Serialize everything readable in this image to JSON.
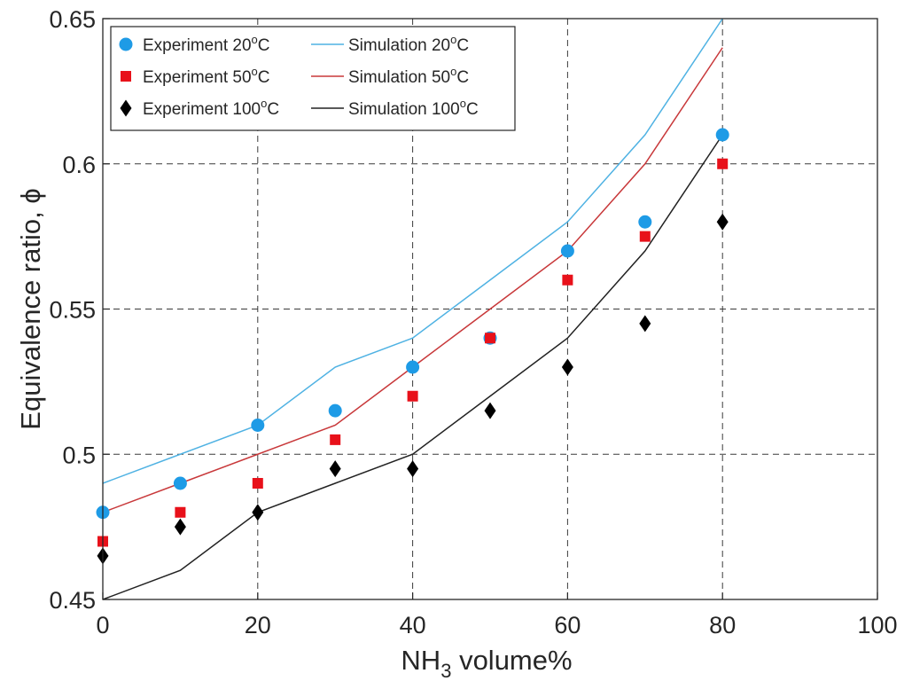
{
  "chart_data": {
    "type": "scatter",
    "xlabel": "NH3 volume%",
    "xlabel_main": "NH",
    "xlabel_sub": "3",
    "xlabel_rest": " volume%",
    "ylabel": "Equivalence ratio, ϕ",
    "xlim": [
      0,
      100
    ],
    "ylim": [
      0.45,
      0.65
    ],
    "xticks": [
      0,
      20,
      40,
      60,
      80,
      100
    ],
    "xtick_labels": [
      "0",
      "20",
      "40",
      "60",
      "80",
      "100"
    ],
    "yticks": [
      0.45,
      0.5,
      0.55,
      0.6,
      0.65
    ],
    "ytick_labels": [
      "0.45",
      "0.5",
      "0.55",
      "0.6",
      "0.65"
    ],
    "grid": true,
    "legend_position": "top-left",
    "series": [
      {
        "name": "Experiment 20oC",
        "legend_main": "Experiment 20",
        "legend_sup": "o",
        "legend_end": "C",
        "kind": "marker-circle",
        "color": "#1e9be6",
        "x": [
          0,
          10,
          20,
          30,
          40,
          50,
          60,
          70,
          80
        ],
        "y": [
          0.48,
          0.49,
          0.51,
          0.515,
          0.53,
          0.54,
          0.57,
          0.58,
          0.61
        ]
      },
      {
        "name": "Experiment 50oC",
        "legend_main": "Experiment 50",
        "legend_sup": "o",
        "legend_end": "C",
        "kind": "marker-square",
        "color": "#e8111a",
        "x": [
          0,
          10,
          20,
          30,
          40,
          50,
          60,
          70,
          80
        ],
        "y": [
          0.47,
          0.48,
          0.49,
          0.505,
          0.52,
          0.54,
          0.56,
          0.575,
          0.6
        ]
      },
      {
        "name": "Experiment 100oC",
        "legend_main": "Experiment 100",
        "legend_sup": "o",
        "legend_end": "C",
        "kind": "marker-diamond",
        "color": "#000000",
        "x": [
          0,
          10,
          20,
          30,
          40,
          50,
          60,
          70,
          80
        ],
        "y": [
          0.465,
          0.475,
          0.48,
          0.495,
          0.495,
          0.515,
          0.53,
          0.545,
          0.58
        ]
      },
      {
        "name": "Simulation 20oC",
        "legend_main": "Simulation 20",
        "legend_sup": "o",
        "legend_end": "C",
        "kind": "line",
        "color": "#4fb2e3",
        "x": [
          0,
          10,
          20,
          30,
          40,
          50,
          60,
          70,
          80
        ],
        "y": [
          0.49,
          0.5,
          0.51,
          0.53,
          0.54,
          0.56,
          0.58,
          0.61,
          0.65
        ]
      },
      {
        "name": "Simulation 50oC",
        "legend_main": "Simulation 50",
        "legend_sup": "o",
        "legend_end": "C",
        "kind": "line",
        "color": "#c8383a",
        "x": [
          0,
          10,
          20,
          30,
          40,
          50,
          60,
          70,
          80
        ],
        "y": [
          0.48,
          0.49,
          0.5,
          0.51,
          0.53,
          0.55,
          0.57,
          0.6,
          0.64
        ]
      },
      {
        "name": "Simulation 100oC",
        "legend_main": "Simulation 100",
        "legend_sup": "o",
        "legend_end": "C",
        "kind": "line",
        "color": "#222222",
        "x": [
          0,
          10,
          20,
          30,
          40,
          50,
          60,
          70,
          80
        ],
        "y": [
          0.45,
          0.46,
          0.48,
          0.49,
          0.5,
          0.52,
          0.54,
          0.57,
          0.61
        ]
      }
    ]
  }
}
